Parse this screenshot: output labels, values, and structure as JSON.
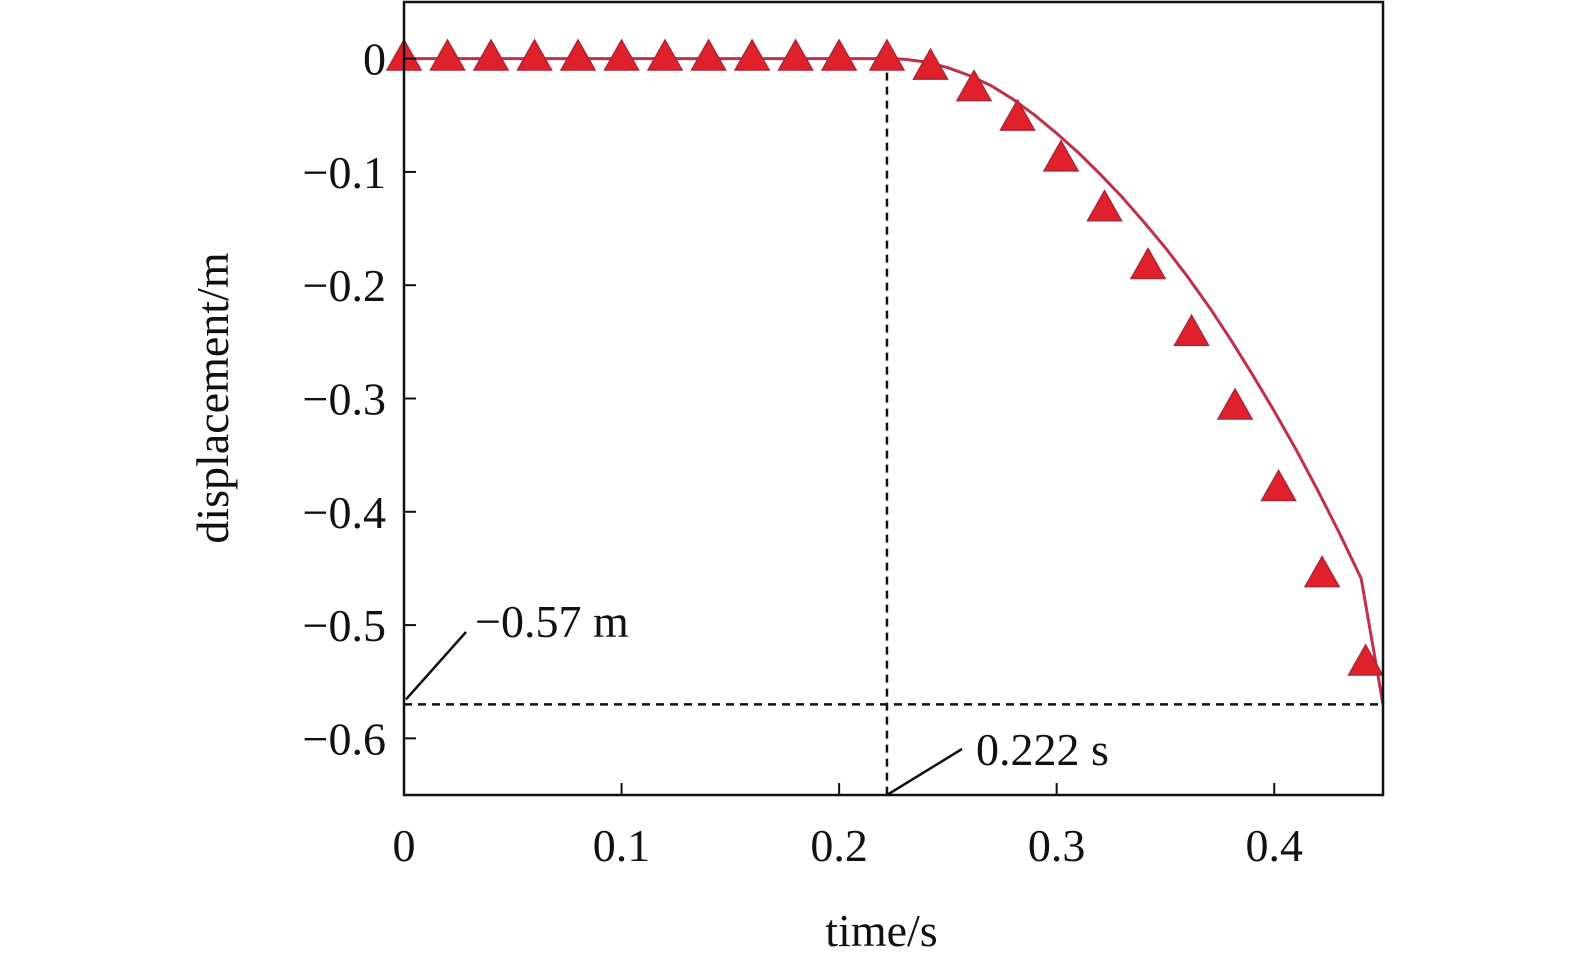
{
  "chart_data": {
    "type": "line",
    "xlabel": "time/s",
    "ylabel": "displacement/m",
    "xlim": [
      0,
      0.45
    ],
    "ylim": [
      -0.65,
      0.05
    ],
    "x_ticks": [
      0,
      0.1,
      0.2,
      0.3,
      0.4
    ],
    "x_tick_labels": [
      "0",
      "0.1",
      "0.2",
      "0.3",
      "0.4"
    ],
    "y_ticks": [
      0,
      -0.1,
      -0.2,
      -0.3,
      -0.4,
      -0.5,
      -0.6
    ],
    "y_tick_labels": [
      "0",
      "−0.1",
      "−0.2",
      "−0.3",
      "−0.4",
      "−0.5",
      "−0.6"
    ],
    "grid": false,
    "series": [
      {
        "style": "line",
        "color": "#c0304a",
        "x": [
          0,
          0.222,
          0.23,
          0.24,
          0.25,
          0.26,
          0.27,
          0.28,
          0.29,
          0.3,
          0.31,
          0.32,
          0.33,
          0.34,
          0.35,
          0.36,
          0.37,
          0.38,
          0.39,
          0.4,
          0.41,
          0.42,
          0.43,
          0.44,
          0.45
        ],
        "y": [
          0,
          0,
          -0.0005,
          -0.003,
          -0.008,
          -0.015,
          -0.024,
          -0.036,
          -0.05,
          -0.066,
          -0.083,
          -0.102,
          -0.122,
          -0.144,
          -0.167,
          -0.192,
          -0.219,
          -0.248,
          -0.279,
          -0.311,
          -0.345,
          -0.381,
          -0.419,
          -0.459,
          -0.57
        ]
      },
      {
        "style": "markers",
        "marker": "triangle",
        "color": "#e0202a",
        "x": [
          0,
          0.02,
          0.04,
          0.06,
          0.08,
          0.1,
          0.12,
          0.14,
          0.16,
          0.18,
          0.2,
          0.222,
          0.242,
          0.262,
          0.282,
          0.302,
          0.322,
          0.342,
          0.362,
          0.382,
          0.402,
          0.422,
          0.442
        ],
        "y": [
          0,
          0,
          0,
          0,
          0,
          0,
          0,
          0,
          0,
          0,
          0,
          0,
          -0.008,
          -0.027,
          -0.053,
          -0.089,
          -0.133,
          -0.184,
          -0.243,
          -0.308,
          -0.38,
          -0.456,
          -0.534
        ]
      }
    ],
    "annotations": [
      {
        "label": "−0.57 m",
        "axis": "y",
        "value": -0.57
      },
      {
        "label": "0.222 s",
        "axis": "x",
        "value": 0.222
      }
    ]
  }
}
